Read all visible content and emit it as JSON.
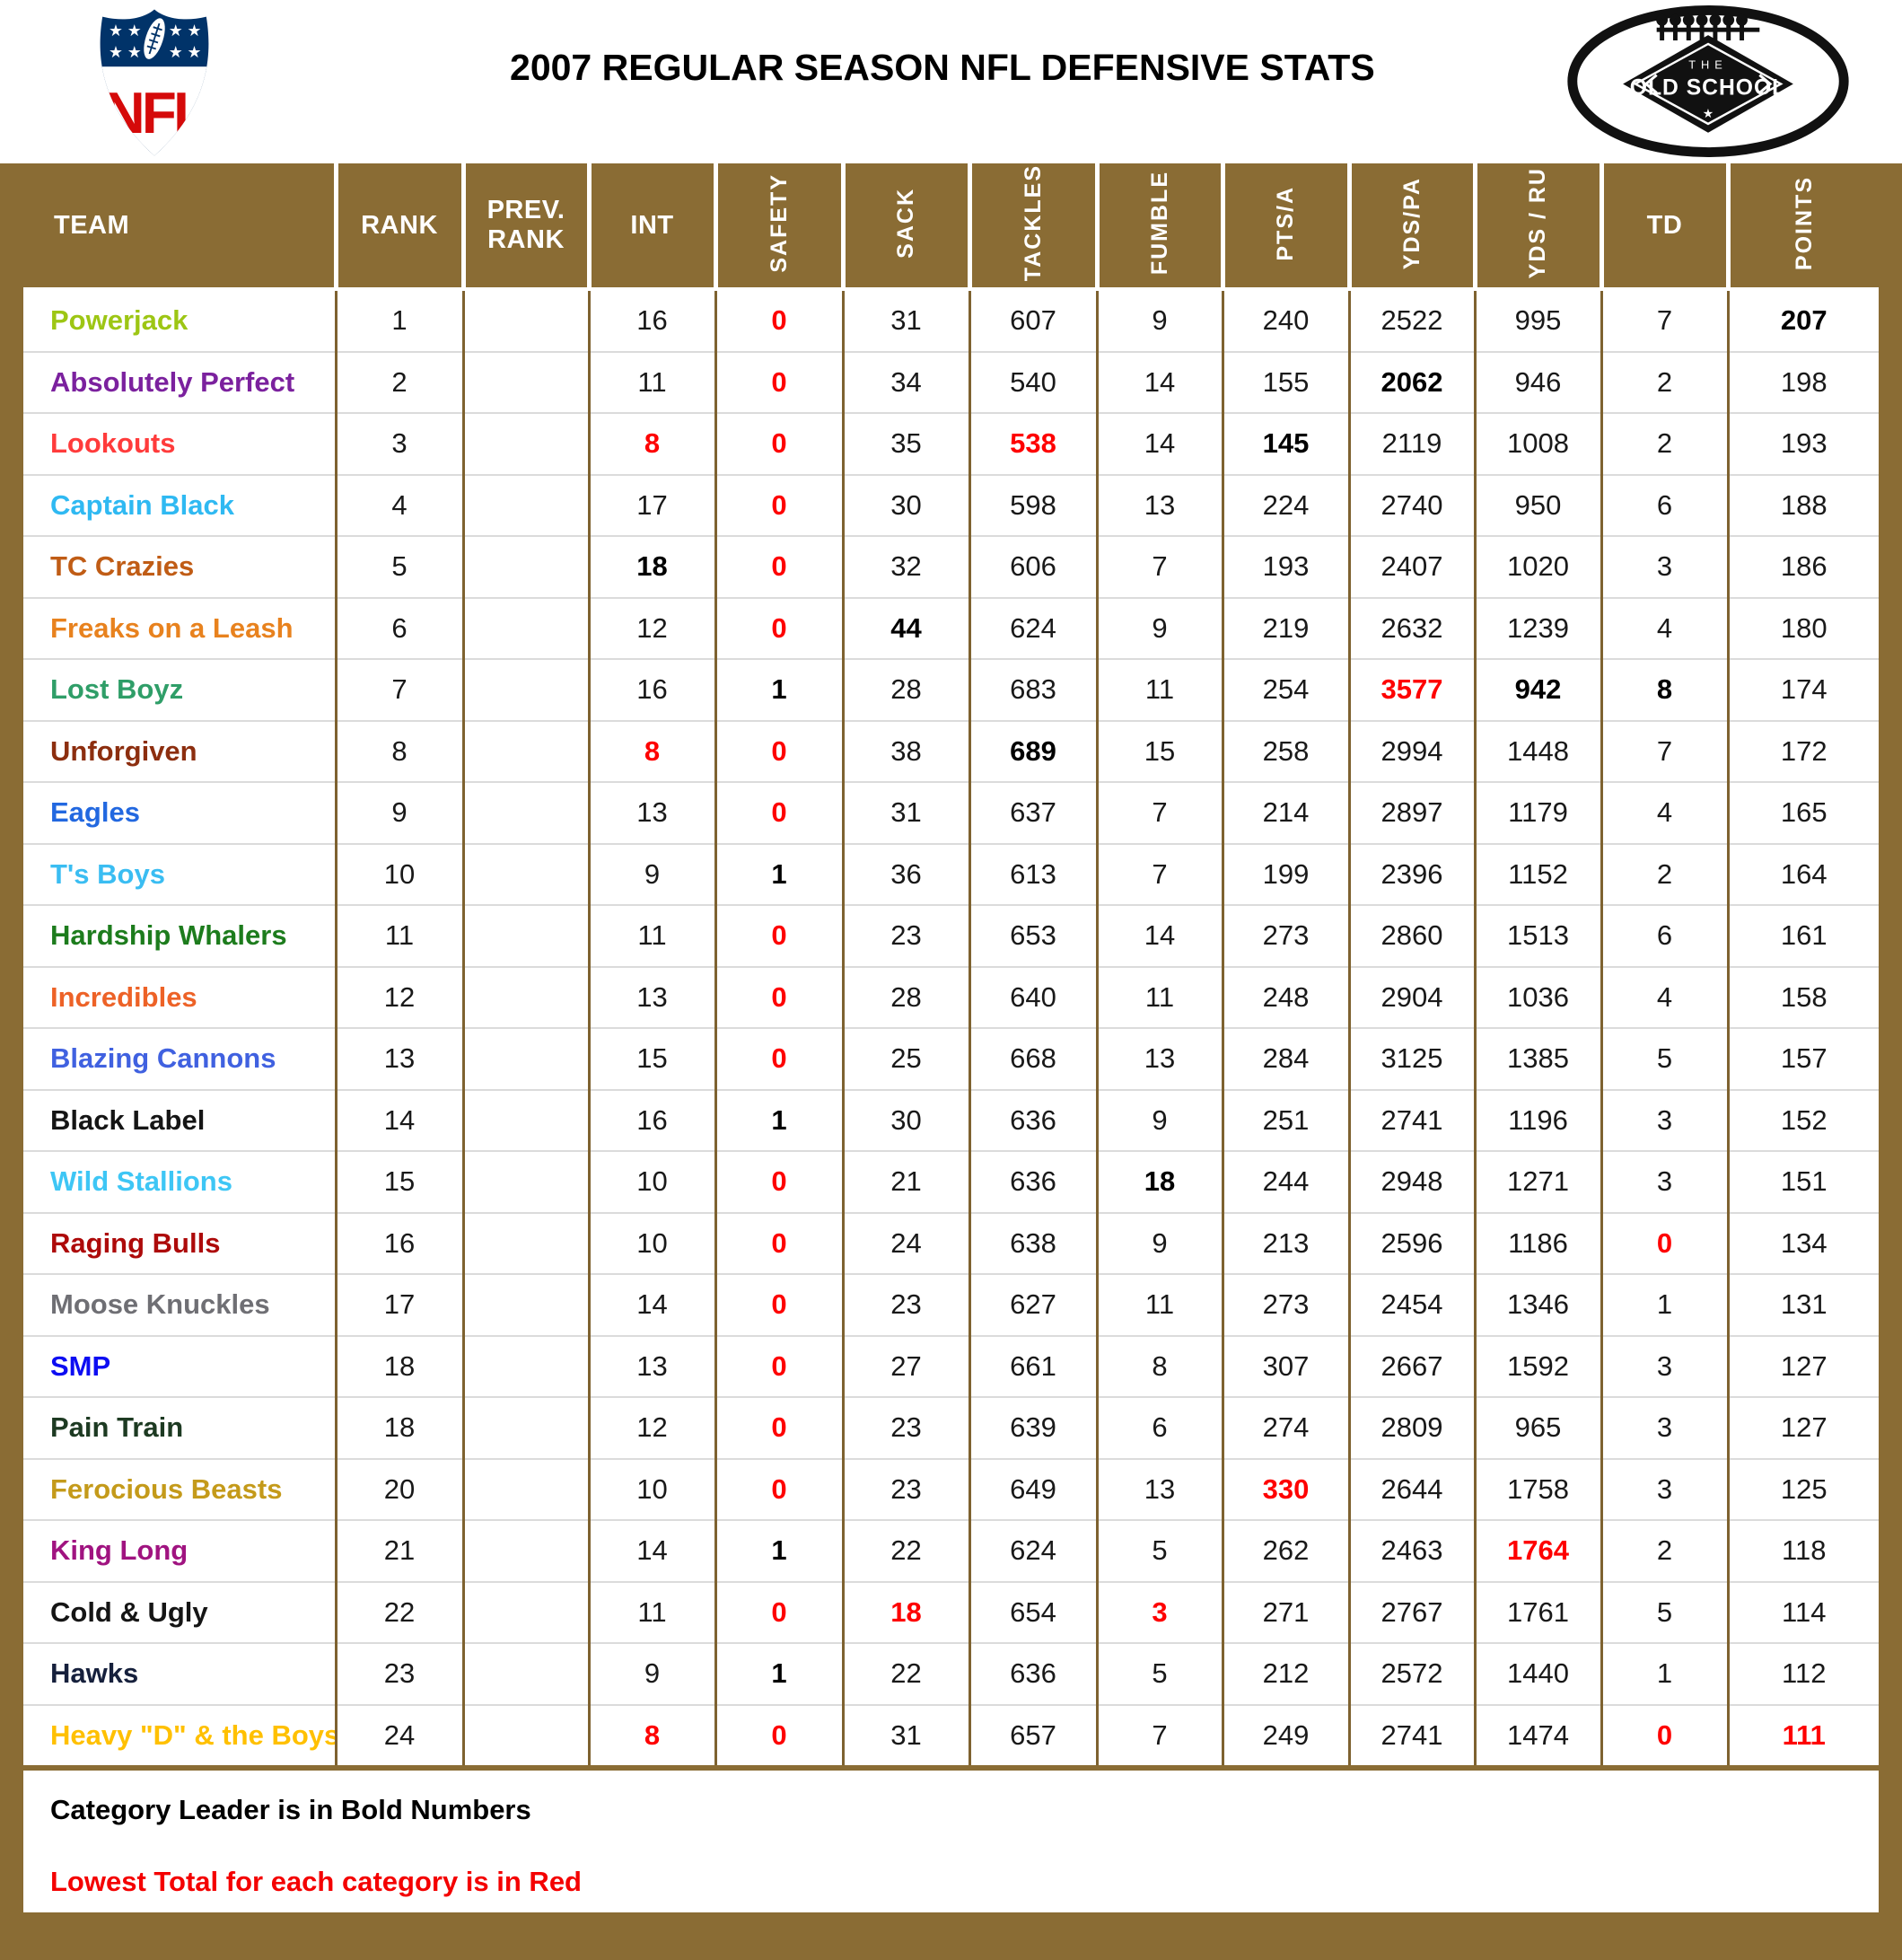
{
  "header": {
    "title": "2007 REGULAR SEASON NFL DEFENSIVE STATS",
    "nfl_logo_text": "NFL",
    "old_school_logo": {
      "top": "THE",
      "main": "OLD SCHOOL",
      "star": "★"
    }
  },
  "colors": {
    "page_brown": "#8A6C34",
    "header_text": "#FFFFFF",
    "highlight_red": "#FE0000",
    "body_grid_gray": "#DBDBDB",
    "body_grid_brown": "#7E6230"
  },
  "table": {
    "columns": [
      {
        "key": "team",
        "label": "TEAM",
        "orientation": "horizontal"
      },
      {
        "key": "rank",
        "label": "RANK",
        "orientation": "horizontal"
      },
      {
        "key": "prev",
        "label": "PREV. RANK",
        "orientation": "horizontal"
      },
      {
        "key": "int",
        "label": "INT",
        "orientation": "horizontal"
      },
      {
        "key": "safety",
        "label": "SAFETY",
        "orientation": "vertical"
      },
      {
        "key": "sack",
        "label": "SACK",
        "orientation": "vertical"
      },
      {
        "key": "tackles",
        "label": "TACKLES",
        "orientation": "vertical"
      },
      {
        "key": "fumble",
        "label": "FUMBLE",
        "orientation": "vertical"
      },
      {
        "key": "ptsa",
        "label": "PTS/A",
        "orientation": "vertical"
      },
      {
        "key": "ydspa",
        "label": "YDS/PA",
        "orientation": "vertical"
      },
      {
        "key": "ydsru",
        "label": "YDS / RU",
        "orientation": "vertical"
      },
      {
        "key": "td",
        "label": "TD",
        "orientation": "horizontal"
      },
      {
        "key": "points",
        "label": "POINTS",
        "orientation": "vertical"
      }
    ],
    "rows": [
      {
        "team": "Powerjack",
        "team_color": "#9DC614",
        "rank": "1",
        "prev": "",
        "int": "16",
        "safety": "0",
        "sack": "31",
        "tackles": "607",
        "fumble": "9",
        "ptsa": "240",
        "ydspa": "2522",
        "ydsru": "995",
        "td": "7",
        "points": "207",
        "styles": {
          "safety": "red",
          "points": "bold"
        }
      },
      {
        "team": "Absolutely Perfect",
        "team_color": "#7B219E",
        "rank": "2",
        "prev": "",
        "int": "11",
        "safety": "0",
        "sack": "34",
        "tackles": "540",
        "fumble": "14",
        "ptsa": "155",
        "ydspa": "2062",
        "ydsru": "946",
        "td": "2",
        "points": "198",
        "styles": {
          "safety": "red",
          "ydspa": "bold"
        }
      },
      {
        "team": "Lookouts",
        "team_color": "#FF3B3B",
        "rank": "3",
        "prev": "",
        "int": "8",
        "safety": "0",
        "sack": "35",
        "tackles": "538",
        "fumble": "14",
        "ptsa": "145",
        "ydspa": "2119",
        "ydsru": "1008",
        "td": "2",
        "points": "193",
        "styles": {
          "int": "red",
          "safety": "red",
          "tackles": "red",
          "ptsa": "bold"
        }
      },
      {
        "team": "Captain Black",
        "team_color": "#2FB9F2",
        "rank": "4",
        "prev": "",
        "int": "17",
        "safety": "0",
        "sack": "30",
        "tackles": "598",
        "fumble": "13",
        "ptsa": "224",
        "ydspa": "2740",
        "ydsru": "950",
        "td": "6",
        "points": "188",
        "styles": {
          "safety": "red"
        }
      },
      {
        "team": "TC Crazies",
        "team_color": "#C05C15",
        "rank": "5",
        "prev": "",
        "int": "18",
        "safety": "0",
        "sack": "32",
        "tackles": "606",
        "fumble": "7",
        "ptsa": "193",
        "ydspa": "2407",
        "ydsru": "1020",
        "td": "3",
        "points": "186",
        "styles": {
          "int": "bold",
          "safety": "red"
        }
      },
      {
        "team": "Freaks on a Leash",
        "team_color": "#E8821E",
        "rank": "6",
        "prev": "",
        "int": "12",
        "safety": "0",
        "sack": "44",
        "tackles": "624",
        "fumble": "9",
        "ptsa": "219",
        "ydspa": "2632",
        "ydsru": "1239",
        "td": "4",
        "points": "180",
        "styles": {
          "safety": "red",
          "sack": "bold"
        }
      },
      {
        "team": "Lost Boyz",
        "team_color": "#2F9E68",
        "rank": "7",
        "prev": "",
        "int": "16",
        "safety": "1",
        "sack": "28",
        "tackles": "683",
        "fumble": "11",
        "ptsa": "254",
        "ydspa": "3577",
        "ydsru": "942",
        "td": "8",
        "points": "174",
        "styles": {
          "safety": "bold",
          "ydspa": "red",
          "ydsru": "bold",
          "td": "bold"
        }
      },
      {
        "team": "Unforgiven",
        "team_color": "#8C2E0F",
        "rank": "8",
        "prev": "",
        "int": "8",
        "safety": "0",
        "sack": "38",
        "tackles": "689",
        "fumble": "15",
        "ptsa": "258",
        "ydspa": "2994",
        "ydsru": "1448",
        "td": "7",
        "points": "172",
        "styles": {
          "int": "red",
          "safety": "red",
          "tackles": "bold"
        }
      },
      {
        "team": "Eagles",
        "team_color": "#2268E0",
        "rank": "9",
        "prev": "",
        "int": "13",
        "safety": "0",
        "sack": "31",
        "tackles": "637",
        "fumble": "7",
        "ptsa": "214",
        "ydspa": "2897",
        "ydsru": "1179",
        "td": "4",
        "points": "165",
        "styles": {
          "safety": "red"
        }
      },
      {
        "team": "T's Boys",
        "team_color": "#3ABDF2",
        "rank": "10",
        "prev": "",
        "int": "9",
        "safety": "1",
        "sack": "36",
        "tackles": "613",
        "fumble": "7",
        "ptsa": "199",
        "ydspa": "2396",
        "ydsru": "1152",
        "td": "2",
        "points": "164",
        "styles": {
          "safety": "bold"
        }
      },
      {
        "team": "Hardship Whalers",
        "team_color": "#1D7C1D",
        "rank": "11",
        "prev": "",
        "int": "11",
        "safety": "0",
        "sack": "23",
        "tackles": "653",
        "fumble": "14",
        "ptsa": "273",
        "ydspa": "2860",
        "ydsru": "1513",
        "td": "6",
        "points": "161",
        "styles": {
          "safety": "red"
        }
      },
      {
        "team": "Incredibles",
        "team_color": "#ED6227",
        "rank": "12",
        "prev": "",
        "int": "13",
        "safety": "0",
        "sack": "28",
        "tackles": "640",
        "fumble": "11",
        "ptsa": "248",
        "ydspa": "2904",
        "ydsru": "1036",
        "td": "4",
        "points": "158",
        "styles": {
          "safety": "red"
        }
      },
      {
        "team": "Blazing Cannons",
        "team_color": "#4061E0",
        "rank": "13",
        "prev": "",
        "int": "15",
        "safety": "0",
        "sack": "25",
        "tackles": "668",
        "fumble": "13",
        "ptsa": "284",
        "ydspa": "3125",
        "ydsru": "1385",
        "td": "5",
        "points": "157",
        "styles": {
          "safety": "red"
        }
      },
      {
        "team": "Black Label",
        "team_color": "#151515",
        "rank": "14",
        "prev": "",
        "int": "16",
        "safety": "1",
        "sack": "30",
        "tackles": "636",
        "fumble": "9",
        "ptsa": "251",
        "ydspa": "2741",
        "ydsru": "1196",
        "td": "3",
        "points": "152",
        "styles": {
          "safety": "bold"
        }
      },
      {
        "team": "Wild Stallions",
        "team_color": "#3EC6F5",
        "rank": "15",
        "prev": "",
        "int": "10",
        "safety": "0",
        "sack": "21",
        "tackles": "636",
        "fumble": "18",
        "ptsa": "244",
        "ydspa": "2948",
        "ydsru": "1271",
        "td": "3",
        "points": "151",
        "styles": {
          "safety": "red",
          "fumble": "bold"
        }
      },
      {
        "team": "Raging Bulls",
        "team_color": "#AD0A0A",
        "rank": "16",
        "prev": "",
        "int": "10",
        "safety": "0",
        "sack": "24",
        "tackles": "638",
        "fumble": "9",
        "ptsa": "213",
        "ydspa": "2596",
        "ydsru": "1186",
        "td": "0",
        "points": "134",
        "styles": {
          "safety": "red",
          "td": "red"
        }
      },
      {
        "team": "Moose Knuckles",
        "team_color": "#6F6F74",
        "rank": "17",
        "prev": "",
        "int": "14",
        "safety": "0",
        "sack": "23",
        "tackles": "627",
        "fumble": "11",
        "ptsa": "273",
        "ydspa": "2454",
        "ydsru": "1346",
        "td": "1",
        "points": "131",
        "styles": {
          "safety": "red"
        }
      },
      {
        "team": "SMP",
        "team_color": "#0D0DF2",
        "rank": "18",
        "prev": "",
        "int": "13",
        "safety": "0",
        "sack": "27",
        "tackles": "661",
        "fumble": "8",
        "ptsa": "307",
        "ydspa": "2667",
        "ydsru": "1592",
        "td": "3",
        "points": "127",
        "styles": {
          "safety": "red"
        }
      },
      {
        "team": "Pain Train",
        "team_color": "#1D3A22",
        "rank": "18",
        "prev": "",
        "int": "12",
        "safety": "0",
        "sack": "23",
        "tackles": "639",
        "fumble": "6",
        "ptsa": "274",
        "ydspa": "2809",
        "ydsru": "965",
        "td": "3",
        "points": "127",
        "styles": {
          "safety": "red"
        }
      },
      {
        "team": "Ferocious Beasts",
        "team_color": "#C49A1A",
        "rank": "20",
        "prev": "",
        "int": "10",
        "safety": "0",
        "sack": "23",
        "tackles": "649",
        "fumble": "13",
        "ptsa": "330",
        "ydspa": "2644",
        "ydsru": "1758",
        "td": "3",
        "points": "125",
        "styles": {
          "safety": "red",
          "ptsa": "red"
        }
      },
      {
        "team": "King Long",
        "team_color": "#A01380",
        "rank": "21",
        "prev": "",
        "int": "14",
        "safety": "1",
        "sack": "22",
        "tackles": "624",
        "fumble": "5",
        "ptsa": "262",
        "ydspa": "2463",
        "ydsru": "1764",
        "td": "2",
        "points": "118",
        "styles": {
          "safety": "bold",
          "ydsru": "red"
        }
      },
      {
        "team": "Cold & Ugly",
        "team_color": "#151515",
        "rank": "22",
        "prev": "",
        "int": "11",
        "safety": "0",
        "sack": "18",
        "tackles": "654",
        "fumble": "3",
        "ptsa": "271",
        "ydspa": "2767",
        "ydsru": "1761",
        "td": "5",
        "points": "114",
        "styles": {
          "safety": "red",
          "sack": "red",
          "fumble": "red"
        }
      },
      {
        "team": "Hawks",
        "team_color": "#16203C",
        "rank": "23",
        "prev": "",
        "int": "9",
        "safety": "1",
        "sack": "22",
        "tackles": "636",
        "fumble": "5",
        "ptsa": "212",
        "ydspa": "2572",
        "ydsru": "1440",
        "td": "1",
        "points": "112",
        "styles": {
          "safety": "bold"
        }
      },
      {
        "team": "Heavy \"D\" & the Boys",
        "team_color": "#FFC000",
        "rank": "24",
        "prev": "",
        "int": "8",
        "safety": "0",
        "sack": "31",
        "tackles": "657",
        "fumble": "7",
        "ptsa": "249",
        "ydspa": "2741",
        "ydsru": "1474",
        "td": "0",
        "points": "111",
        "styles": {
          "int": "red",
          "safety": "red",
          "td": "red",
          "points": "red"
        }
      }
    ]
  },
  "footer": {
    "note_bold": "Category Leader is in Bold Numbers",
    "note_red": "Lowest Total for each category is in Red"
  }
}
